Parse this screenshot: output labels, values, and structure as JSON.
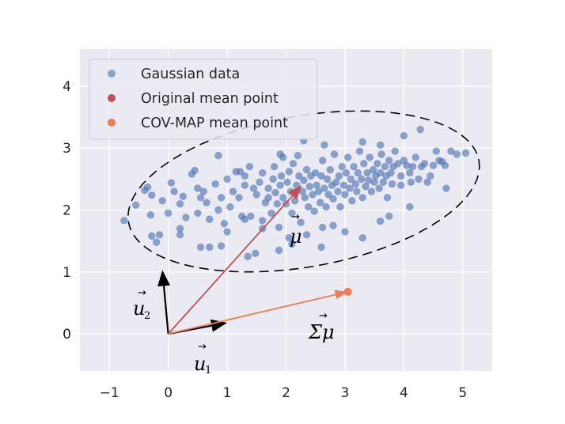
{
  "chart_data": {
    "type": "scatter",
    "xlim": [
      -1.5,
      5.5
    ],
    "ylim": [
      -0.6,
      4.6
    ],
    "x_ticks": [
      -1,
      0,
      1,
      2,
      3,
      4,
      5
    ],
    "y_ticks": [
      0,
      1,
      2,
      3,
      4
    ],
    "grid": true,
    "legend_position": "top-left",
    "legend": [
      {
        "label": "Gaussian data",
        "color": "#4c72b0",
        "marker": "circle"
      },
      {
        "label": "Original mean point",
        "color": "#c44e52",
        "marker": "circle"
      },
      {
        "label": "COV-MAP mean point",
        "color": "#f07c50",
        "marker": "circle"
      }
    ],
    "colors": {
      "data": "#4c72b0",
      "original_mean": "#c44e52",
      "covmap_mean": "#f07c50",
      "basis": "#000000",
      "background": "#eaeaf2"
    },
    "series": [
      {
        "name": "Gaussian data",
        "points": [
          [
            -0.75,
            1.83
          ],
          [
            -0.55,
            2.08
          ],
          [
            -0.4,
            2.32
          ],
          [
            -0.35,
            2.37
          ],
          [
            -0.28,
            2.24
          ],
          [
            -0.3,
            1.92
          ],
          [
            -0.28,
            1.58
          ],
          [
            -0.2,
            1.48
          ],
          [
            -0.1,
            2.15
          ],
          [
            0.05,
            2.44
          ],
          [
            0.0,
            1.95
          ],
          [
            0.1,
            2.3
          ],
          [
            0.2,
            2.1
          ],
          [
            0.2,
            1.6
          ],
          [
            0.2,
            1.7
          ],
          [
            0.3,
            1.88
          ],
          [
            0.25,
            2.22
          ],
          [
            0.4,
            2.58
          ],
          [
            0.45,
            2.64
          ],
          [
            0.5,
            2.35
          ],
          [
            0.5,
            1.95
          ],
          [
            0.55,
            2.2
          ],
          [
            0.6,
            2.3
          ],
          [
            0.65,
            2.12
          ],
          [
            0.7,
            1.85
          ],
          [
            0.7,
            1.4
          ],
          [
            0.8,
            2.42
          ],
          [
            0.85,
            2.0
          ],
          [
            0.9,
            2.2
          ],
          [
            0.95,
            1.78
          ],
          [
            1.0,
            2.5
          ],
          [
            1.05,
            2.05
          ],
          [
            1.1,
            2.3
          ],
          [
            1.15,
            2.62
          ],
          [
            1.2,
            2.2
          ],
          [
            1.22,
            2.62
          ],
          [
            1.25,
            1.9
          ],
          [
            1.3,
            2.4
          ],
          [
            1.3,
            2.55
          ],
          [
            1.35,
            1.25
          ],
          [
            1.38,
            2.7
          ],
          [
            1.45,
            2.35
          ],
          [
            1.48,
            1.3
          ],
          [
            1.5,
            2.25
          ],
          [
            1.55,
            2.45
          ],
          [
            1.6,
            1.83
          ],
          [
            1.6,
            2.6
          ],
          [
            1.65,
            2.12
          ],
          [
            1.7,
            2.2
          ],
          [
            1.7,
            2.35
          ],
          [
            1.75,
            1.95
          ],
          [
            1.78,
            2.5
          ],
          [
            1.8,
            2.7
          ],
          [
            1.82,
            2.28
          ],
          [
            1.85,
            2.1
          ],
          [
            1.88,
            1.72
          ],
          [
            1.9,
            2.4
          ],
          [
            1.92,
            2.55
          ],
          [
            1.95,
            2.2
          ],
          [
            1.95,
            2.85
          ],
          [
            2.0,
            2.1
          ],
          [
            2.02,
            2.45
          ],
          [
            2.05,
            2.62
          ],
          [
            2.08,
            2.3
          ],
          [
            2.1,
            1.95
          ],
          [
            2.12,
            2.75
          ],
          [
            2.15,
            2.15
          ],
          [
            2.18,
            2.4
          ],
          [
            2.2,
            2.88
          ],
          [
            2.22,
            2.55
          ],
          [
            2.25,
            1.8
          ],
          [
            2.28,
            2.3
          ],
          [
            2.3,
            2.48
          ],
          [
            2.32,
            2.2
          ],
          [
            2.35,
            2.65
          ],
          [
            2.38,
            2.05
          ],
          [
            2.4,
            2.38
          ],
          [
            2.42,
            2.55
          ],
          [
            2.45,
            2.25
          ],
          [
            2.48,
            1.98
          ],
          [
            2.5,
            2.6
          ],
          [
            2.52,
            2.4
          ],
          [
            2.55,
            2.3
          ],
          [
            2.58,
            2.12
          ],
          [
            2.6,
            2.55
          ],
          [
            2.62,
            2.8
          ],
          [
            2.65,
            2.35
          ],
          [
            2.68,
            2.05
          ],
          [
            2.7,
            2.5
          ],
          [
            2.72,
            2.25
          ],
          [
            2.75,
            2.65
          ],
          [
            2.78,
            2.4
          ],
          [
            2.8,
            2.18
          ],
          [
            2.82,
            2.9
          ],
          [
            2.85,
            2.45
          ],
          [
            2.88,
            2.3
          ],
          [
            2.9,
            2.55
          ],
          [
            2.92,
            2.05
          ],
          [
            2.95,
            2.7
          ],
          [
            2.98,
            2.4
          ],
          [
            3.0,
            2.25
          ],
          [
            3.02,
            2.6
          ],
          [
            3.05,
            2.85
          ],
          [
            3.08,
            2.35
          ],
          [
            3.1,
            2.5
          ],
          [
            3.12,
            2.15
          ],
          [
            3.15,
            2.7
          ],
          [
            3.18,
            2.42
          ],
          [
            3.2,
            2.3
          ],
          [
            3.22,
            2.6
          ],
          [
            3.25,
            2.95
          ],
          [
            3.28,
            2.5
          ],
          [
            3.3,
            2.2
          ],
          [
            3.32,
            2.75
          ],
          [
            3.35,
            2.38
          ],
          [
            3.38,
            2.6
          ],
          [
            3.4,
            2.48
          ],
          [
            3.42,
            2.85
          ],
          [
            3.45,
            2.3
          ],
          [
            3.48,
            2.65
          ],
          [
            3.5,
            2.45
          ],
          [
            3.52,
            2.55
          ],
          [
            3.55,
            2.75
          ],
          [
            3.58,
            2.35
          ],
          [
            3.6,
            2.6
          ],
          [
            3.62,
            2.9
          ],
          [
            3.65,
            2.45
          ],
          [
            3.68,
            2.7
          ],
          [
            3.7,
            2.55
          ],
          [
            3.72,
            2.2
          ],
          [
            3.75,
            2.8
          ],
          [
            3.78,
            2.6
          ],
          [
            3.8,
            2.42
          ],
          [
            3.82,
            2.7
          ],
          [
            3.85,
            2.95
          ],
          [
            3.9,
            2.75
          ],
          [
            3.95,
            2.55
          ],
          [
            4.0,
            2.8
          ],
          [
            4.05,
            2.72
          ],
          [
            4.1,
            2.05
          ],
          [
            4.12,
            2.45
          ],
          [
            4.15,
            2.7
          ],
          [
            4.2,
            2.85
          ],
          [
            4.25,
            2.5
          ],
          [
            4.3,
            2.7
          ],
          [
            4.35,
            2.75
          ],
          [
            4.4,
            2.45
          ],
          [
            4.45,
            2.55
          ],
          [
            4.5,
            2.72
          ],
          [
            4.55,
            2.95
          ],
          [
            4.6,
            2.8
          ],
          [
            4.65,
            2.78
          ],
          [
            4.7,
            2.72
          ],
          [
            4.72,
            2.35
          ],
          [
            4.8,
            2.95
          ],
          [
            4.9,
            2.9
          ],
          [
            5.05,
            2.92
          ],
          [
            4.28,
            3.3
          ],
          [
            4.0,
            3.2
          ],
          [
            3.6,
            3.05
          ],
          [
            3.3,
            3.1
          ],
          [
            2.65,
            3.05
          ],
          [
            2.3,
            3.12
          ],
          [
            1.9,
            2.9
          ],
          [
            0.85,
            2.88
          ],
          [
            2.62,
            1.72
          ],
          [
            2.8,
            1.75
          ],
          [
            3.0,
            1.65
          ],
          [
            3.3,
            1.55
          ],
          [
            3.6,
            1.82
          ],
          [
            3.75,
            1.9
          ],
          [
            2.05,
            1.55
          ],
          [
            2.1,
            1.45
          ],
          [
            1.88,
            1.35
          ],
          [
            1.6,
            1.7
          ],
          [
            1.4,
            1.9
          ],
          [
            1.0,
            1.65
          ],
          [
            0.55,
            1.4
          ],
          [
            -0.15,
            1.6
          ],
          [
            0.9,
            1.42
          ],
          [
            1.3,
            1.85
          ],
          [
            2.6,
            1.4
          ],
          [
            2.35,
            1.6
          ],
          [
            3.95,
            2.4
          ],
          [
            4.1,
            2.6
          ]
        ]
      }
    ],
    "vectors": [
      {
        "name": "u1",
        "from": [
          0,
          0
        ],
        "to": [
          1,
          0.18
        ]
      },
      {
        "name": "u2",
        "from": [
          0,
          0
        ],
        "to": [
          -0.1,
          1.03
        ]
      },
      {
        "name": "mu",
        "from": [
          0,
          0
        ],
        "to": [
          2.27,
          2.4
        ]
      },
      {
        "name": "sigma_mu",
        "from": [
          0,
          0
        ],
        "to": [
          3.05,
          0.68
        ]
      }
    ],
    "original_mean": [
      2.27,
      2.4
    ],
    "covmap_mean": [
      3.05,
      0.68
    ],
    "ellipse": {
      "center": [
        2.3,
        2.3
      ],
      "angle_deg": 10,
      "semi_major": 3.02,
      "semi_minor": 0.58
    },
    "annotations": {
      "mu": "μ",
      "sigma_mu": "Σμ",
      "u1": "u",
      "u1_sub": "1",
      "u2": "u",
      "u2_sub": "2",
      "arrow_hat": "→"
    }
  }
}
